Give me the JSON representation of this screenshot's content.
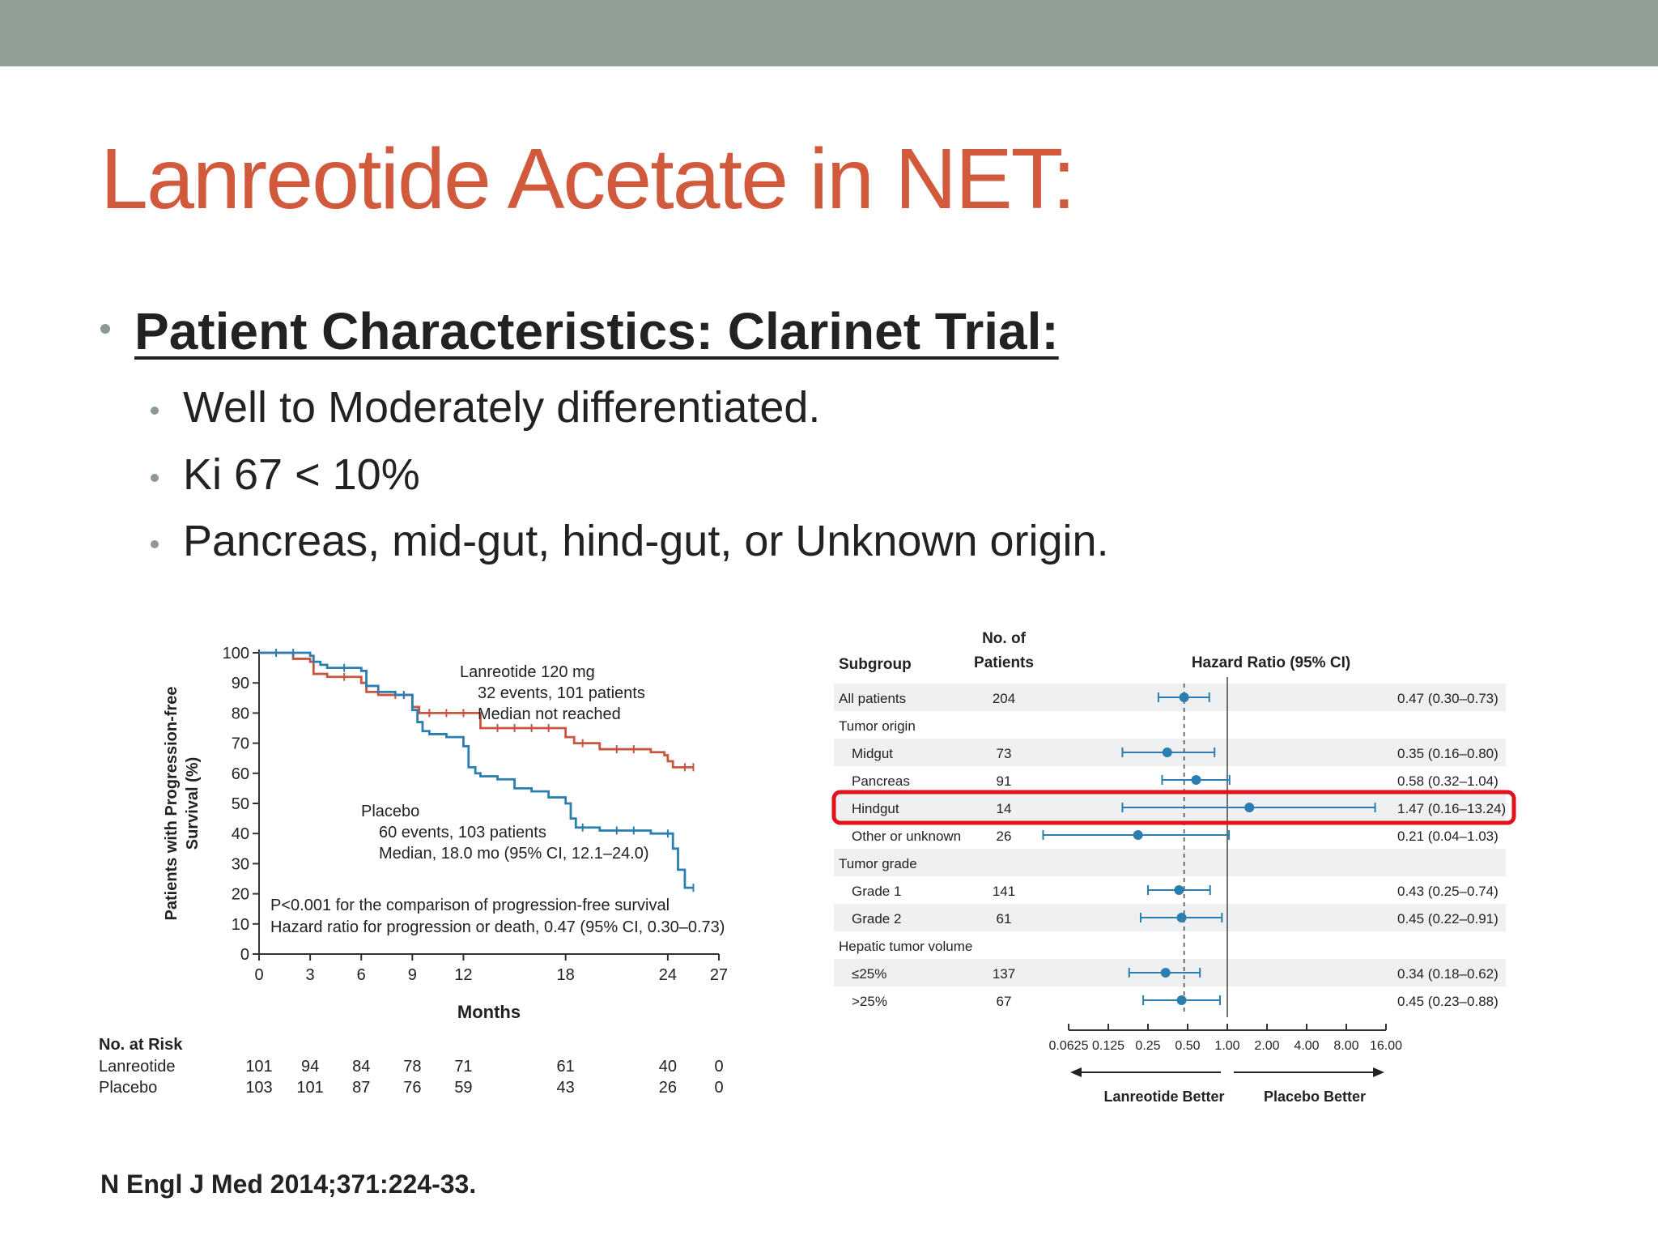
{
  "slide": {
    "title": "Lanreotide Acetate in NET:",
    "heading": "Patient Characteristics: Clarinet Trial:",
    "bullets": [
      "Well to Moderately differentiated.",
      "Ki 67 < 10%",
      "Pancreas, mid-gut, hind-gut, or Unknown origin."
    ],
    "citation": "N Engl J Med 2014;371:224-33.",
    "colors": {
      "topbar": "#919f97",
      "title": "#d15a3c",
      "highlight": "#e0121a",
      "lanreotide": "#c8553d",
      "placebo": "#2a7fb0"
    }
  },
  "chart_data": [
    {
      "type": "line",
      "ylabel_line1": "Patients with Progression-free",
      "ylabel_line2": "Survival (%)",
      "xlabel": "Months",
      "xticks": [
        0,
        3,
        6,
        9,
        12,
        18,
        24,
        27
      ],
      "yticks": [
        0,
        10,
        20,
        30,
        40,
        50,
        60,
        70,
        80,
        90,
        100
      ],
      "xlim": [
        0,
        27
      ],
      "ylim": [
        0,
        100
      ],
      "series": [
        {
          "name": "Lanreotide 120 mg",
          "color": "#c8553d",
          "x": [
            0,
            1,
            2,
            3,
            3.2,
            4,
            5,
            6,
            6.3,
            7,
            8,
            8.5,
            9,
            9.4,
            10,
            11,
            12,
            13,
            14,
            15,
            16,
            17,
            18,
            18.5,
            19,
            20,
            21,
            22,
            23,
            23.8,
            24,
            24.3,
            25,
            25.5
          ],
          "y": [
            100,
            100,
            98,
            97,
            93,
            92,
            92,
            90,
            87,
            86,
            86,
            86,
            82,
            80,
            80,
            80,
            80,
            75,
            75,
            75,
            75,
            75,
            72,
            70,
            70,
            68,
            68,
            68,
            67,
            66,
            64,
            62,
            62,
            62
          ]
        },
        {
          "name": "Placebo",
          "color": "#2a7fb0",
          "x": [
            0,
            1,
            2,
            3,
            3.2,
            3.6,
            4,
            5,
            6,
            6.3,
            7,
            8,
            8.5,
            9,
            9.3,
            9.6,
            10,
            11,
            12,
            12.3,
            12.7,
            13,
            14,
            15,
            16,
            17,
            18,
            18.3,
            18.6,
            19,
            20,
            21,
            22,
            23,
            24,
            24.3,
            24.6,
            25,
            25.5
          ],
          "y": [
            100,
            100,
            100,
            99,
            97,
            96,
            95,
            95,
            94,
            89,
            87,
            86,
            86,
            81,
            77,
            74,
            73,
            72,
            69,
            62,
            60,
            59,
            58,
            55,
            54,
            52,
            50,
            45,
            42,
            42,
            41,
            41,
            41,
            40,
            40,
            35,
            28,
            22,
            22
          ]
        }
      ],
      "annotations": {
        "lanreotide": [
          "Lanreotide 120 mg",
          "32 events, 101 patients",
          "Median not reached"
        ],
        "placebo": [
          "Placebo",
          "60 events, 103 patients",
          "Median, 18.0 mo (95% CI, 12.1–24.0)"
        ],
        "stats": [
          "P<0.001 for the comparison of progression-free survival",
          "Hazard ratio for progression or death, 0.47 (95% CI, 0.30–0.73)"
        ]
      },
      "risk_table": {
        "header": "No. at Risk",
        "months": [
          0,
          3,
          6,
          9,
          12,
          18,
          24,
          27
        ],
        "rows": [
          {
            "label": "Lanreotide",
            "values": [
              "101",
              "94",
              "84",
              "78",
              "71",
              "61",
              "40",
              "0"
            ]
          },
          {
            "label": "Placebo",
            "values": [
              "103",
              "101",
              "87",
              "76",
              "59",
              "43",
              "26",
              "0"
            ]
          }
        ]
      }
    },
    {
      "type": "forest",
      "headers": {
        "subgroup": "Subgroup",
        "patients_line1": "No. of",
        "patients_line2": "Patients",
        "hr": "Hazard Ratio (95% CI)"
      },
      "xscale": "log2",
      "xticks": [
        "0.0625",
        "0.125",
        "0.25",
        "0.50",
        "1.00",
        "2.00",
        "4.00",
        "8.00",
        "16.00"
      ],
      "xlim": [
        0.0625,
        16
      ],
      "left_label": "Lanreotide Better",
      "right_label": "Placebo Better",
      "overall_hr": 0.47,
      "rows": [
        {
          "label": "All patients",
          "indent": false,
          "n": "204",
          "hr": 0.47,
          "lo": 0.3,
          "hi": 0.73,
          "text": "0.47 (0.30–0.73)",
          "shaded": true
        },
        {
          "label": "Tumor origin",
          "indent": false,
          "n": "",
          "hr": null,
          "lo": null,
          "hi": null,
          "text": "",
          "shaded": false
        },
        {
          "label": "Midgut",
          "indent": true,
          "n": "73",
          "hr": 0.35,
          "lo": 0.16,
          "hi": 0.8,
          "text": "0.35 (0.16–0.80)",
          "shaded": true
        },
        {
          "label": "Pancreas",
          "indent": true,
          "n": "91",
          "hr": 0.58,
          "lo": 0.32,
          "hi": 1.04,
          "text": "0.58 (0.32–1.04)",
          "shaded": false
        },
        {
          "label": "Hindgut",
          "indent": true,
          "n": "14",
          "hr": 1.47,
          "lo": 0.16,
          "hi": 13.24,
          "text": "1.47 (0.16–13.24)",
          "shaded": true,
          "highlight": true
        },
        {
          "label": "Other or unknown",
          "indent": true,
          "n": "26",
          "hr": 0.21,
          "lo": 0.04,
          "hi": 1.03,
          "text": "0.21 (0.04–1.03)",
          "shaded": false
        },
        {
          "label": "Tumor grade",
          "indent": false,
          "n": "",
          "hr": null,
          "lo": null,
          "hi": null,
          "text": "",
          "shaded": true
        },
        {
          "label": "Grade 1",
          "indent": true,
          "n": "141",
          "hr": 0.43,
          "lo": 0.25,
          "hi": 0.74,
          "text": "0.43 (0.25–0.74)",
          "shaded": false
        },
        {
          "label": "Grade 2",
          "indent": true,
          "n": "61",
          "hr": 0.45,
          "lo": 0.22,
          "hi": 0.91,
          "text": "0.45 (0.22–0.91)",
          "shaded": true
        },
        {
          "label": "Hepatic tumor volume",
          "indent": false,
          "n": "",
          "hr": null,
          "lo": null,
          "hi": null,
          "text": "",
          "shaded": false
        },
        {
          "label": "≤25%",
          "indent": true,
          "n": "137",
          "hr": 0.34,
          "lo": 0.18,
          "hi": 0.62,
          "text": "0.34 (0.18–0.62)",
          "shaded": true
        },
        {
          "label": ">25%",
          "indent": true,
          "n": "67",
          "hr": 0.45,
          "lo": 0.23,
          "hi": 0.88,
          "text": "0.45 (0.23–0.88)",
          "shaded": false
        }
      ]
    }
  ]
}
